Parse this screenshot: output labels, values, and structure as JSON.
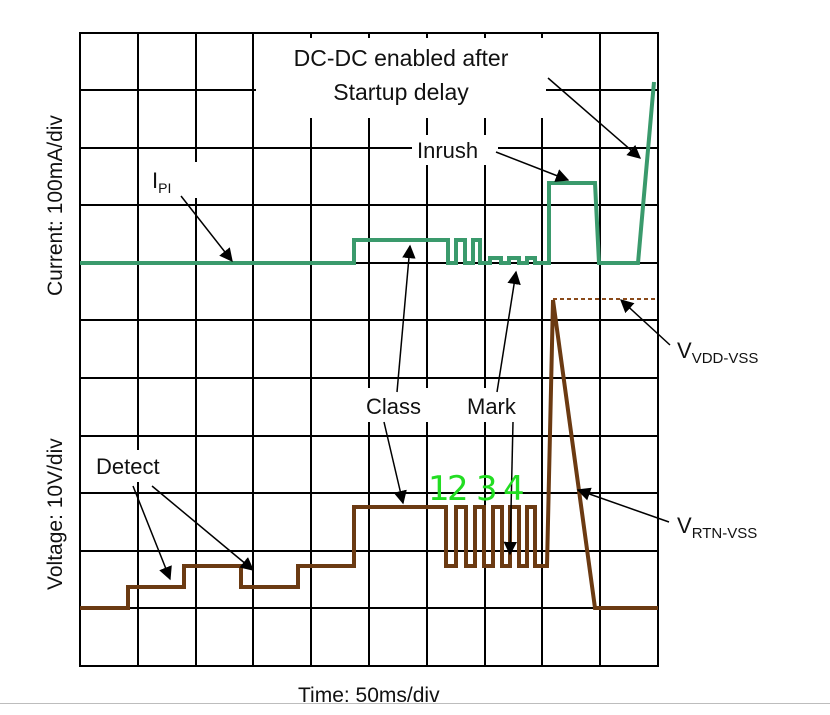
{
  "axes": {
    "y_top_label": "Current: 100mA/div",
    "y_bottom_label": "Voltage: 10V/div",
    "x_label": "Time: 50ms/div"
  },
  "labels": {
    "dcdc_line1": "DC-DC enabled after",
    "dcdc_line2": "Startup delay",
    "inrush": "Inrush",
    "ipi_main": "I",
    "ipi_sub": "PI",
    "class": "Class",
    "mark": "Mark",
    "detect": "Detect",
    "vdd_main": "V",
    "vdd_sub": "VDD-VSS",
    "vrtn_main": "V",
    "vrtn_sub": "RTN-VSS"
  },
  "handwritten": [
    "1",
    "2",
    "3",
    "4"
  ],
  "colors": {
    "current_trace": "#3a9a6c",
    "voltage_trace": "#6b3a12",
    "vdd_dashed": "#8a4a1a",
    "grid": "#000000",
    "handwritten": "#22dd22"
  }
}
